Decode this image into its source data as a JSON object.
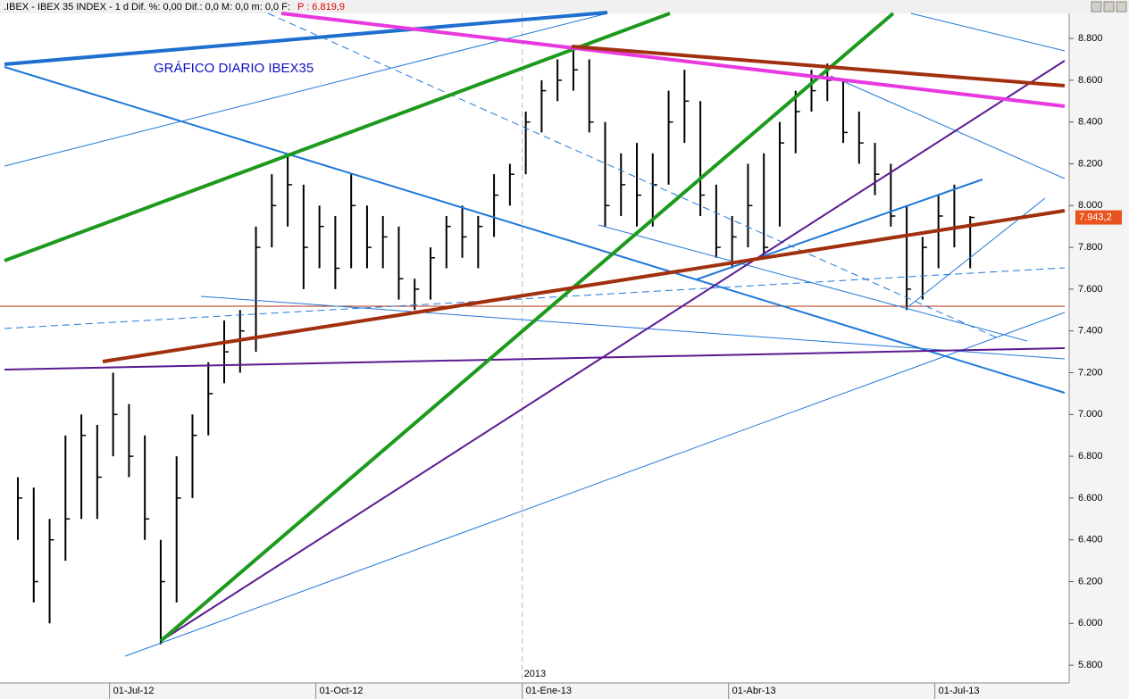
{
  "chart_data": {
    "type": "ohlc",
    "title": ".IBEX - IBEX 35 INDEX - 1 d  Dif. %: 0,00  Dif.: 0,0  M: 0,0  m: 0,0  F:",
    "title_price": "P : 6.819,9",
    "annotation": "GRÁFICO DIARIO IBEX35",
    "year_label": "2013",
    "categories": [
      null,
      null,
      null,
      null,
      null,
      null,
      "01-Jul-12",
      null,
      null,
      null,
      null,
      null,
      null,
      null,
      null,
      null,
      null,
      null,
      null,
      "01-Oct-12",
      null,
      null,
      null,
      null,
      null,
      null,
      null,
      null,
      null,
      null,
      null,
      null,
      "01-Ene-13",
      null,
      null,
      null,
      null,
      null,
      null,
      null,
      null,
      null,
      null,
      null,
      null,
      "01-Abr-13",
      null,
      null,
      null,
      null,
      null,
      null,
      null,
      null,
      null,
      null,
      null,
      null,
      "01-Jul-13",
      null,
      null
    ],
    "high": [
      6700,
      6650,
      6500,
      6900,
      7000,
      6950,
      7200,
      7050,
      6900,
      6400,
      6800,
      7000,
      7250,
      7450,
      7500,
      7900,
      8150,
      8250,
      8100,
      8000,
      7950,
      8150,
      8000,
      7950,
      7900,
      7650,
      7800,
      7950,
      8000,
      7950,
      8150,
      8200,
      8450,
      8600,
      8700,
      8750,
      8700,
      8400,
      8250,
      8300,
      8250,
      8550,
      8650,
      8500,
      8100,
      7950,
      8200,
      8250,
      8400,
      8550,
      8650,
      8680,
      8600,
      8450,
      8300,
      8200,
      8000,
      7850,
      8050,
      8100,
      7950
    ],
    "low": [
      6400,
      6100,
      6000,
      6300,
      6500,
      6500,
      6800,
      6700,
      6400,
      5900,
      6100,
      6600,
      6900,
      7150,
      7200,
      7300,
      7800,
      7900,
      7600,
      7700,
      7600,
      7700,
      7700,
      7700,
      7550,
      7500,
      7550,
      7700,
      7750,
      7700,
      7850,
      8000,
      8150,
      8350,
      8500,
      8550,
      8350,
      7900,
      7950,
      7900,
      7900,
      8100,
      8300,
      7950,
      7750,
      7700,
      7800,
      7750,
      7900,
      8250,
      8450,
      8500,
      8300,
      8200,
      8050,
      7900,
      7500,
      7550,
      7700,
      7800,
      7700
    ],
    "close": [
      6600,
      6200,
      6400,
      6500,
      6900,
      6700,
      7000,
      6800,
      6500,
      6200,
      6600,
      6900,
      7100,
      7300,
      7400,
      7800,
      8000,
      8100,
      7800,
      7900,
      7700,
      8000,
      7800,
      7850,
      7650,
      7600,
      7750,
      7900,
      7850,
      7900,
      8050,
      8150,
      8400,
      8550,
      8600,
      8650,
      8400,
      8000,
      8100,
      8050,
      8100,
      8400,
      8500,
      8050,
      7800,
      7850,
      8000,
      7800,
      8300,
      8450,
      8550,
      8600,
      8350,
      8300,
      8150,
      7950,
      7600,
      7800,
      7950,
      7900,
      7943.2
    ],
    "color": "#000000",
    "last_price": {
      "value": 7943.2,
      "label": "7.943,2"
    },
    "last_price_color": "#e8531e",
    "ylim": [
      5715,
      8920
    ],
    "yticks": [
      {
        "value": 5800,
        "label": "5.800"
      },
      {
        "value": 6000,
        "label": "6.000"
      },
      {
        "value": 6200,
        "label": "6.200"
      },
      {
        "value": 6400,
        "label": "6.400"
      },
      {
        "value": 6600,
        "label": "6.600"
      },
      {
        "value": 6800,
        "label": "6.800"
      },
      {
        "value": 7000,
        "label": "7.000"
      },
      {
        "value": 7200,
        "label": "7.200"
      },
      {
        "value": 7400,
        "label": "7.400"
      },
      {
        "value": 7600,
        "label": "7.600"
      },
      {
        "value": 7800,
        "label": "7.800"
      },
      {
        "value": 8000,
        "label": "8.000"
      },
      {
        "value": 8200,
        "label": "8.200"
      },
      {
        "value": 8400,
        "label": "8.400"
      },
      {
        "value": 8600,
        "label": "8.600"
      },
      {
        "value": 8800,
        "label": "8.800"
      }
    ]
  }
}
